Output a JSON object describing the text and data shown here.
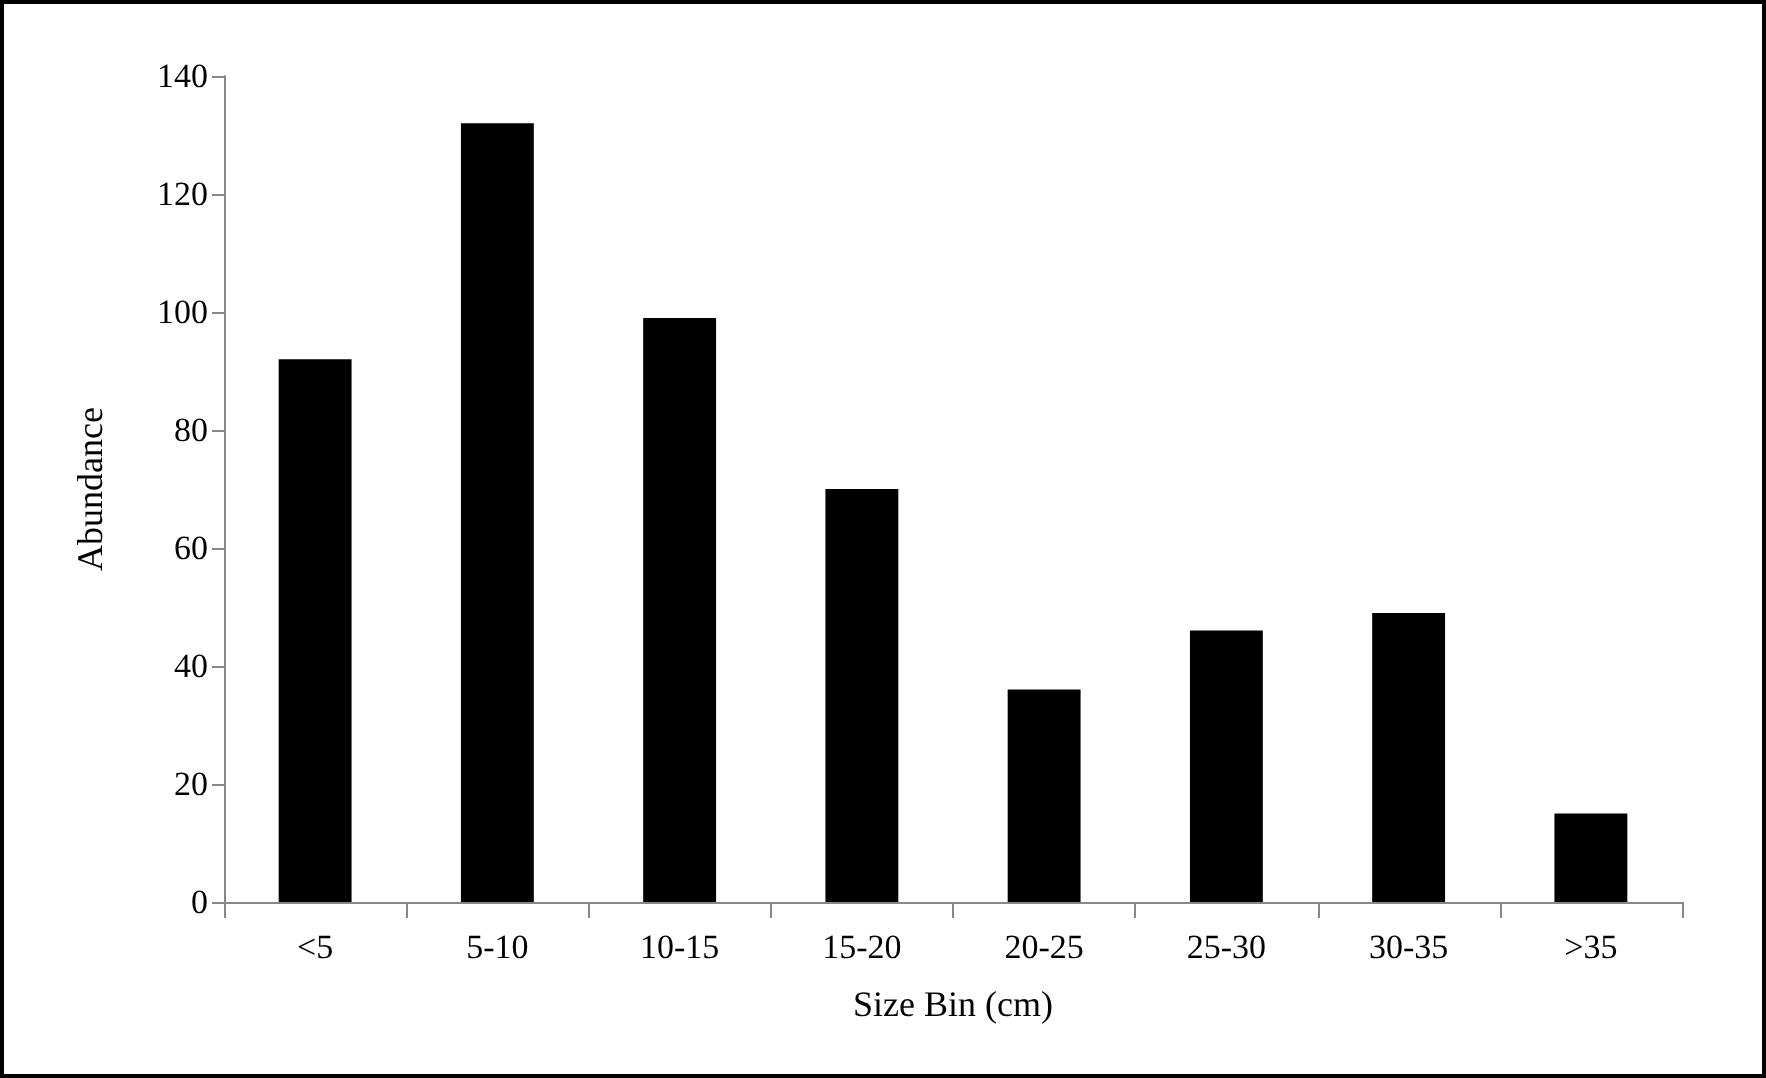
{
  "chart_data": {
    "type": "bar",
    "xlabel": "Size Bin (cm)",
    "ylabel": "Abundance",
    "categories": [
      "<5",
      "5-10",
      "10-15",
      "15-20",
      "20-25",
      "25-30",
      "30-35",
      ">35"
    ],
    "values": [
      92,
      132,
      99,
      70,
      36,
      46,
      49,
      15
    ],
    "color": "#000000",
    "ylim": [
      0,
      140
    ],
    "yticks": [
      0,
      20,
      40,
      60,
      80,
      100,
      120,
      140
    ],
    "grid": false
  }
}
